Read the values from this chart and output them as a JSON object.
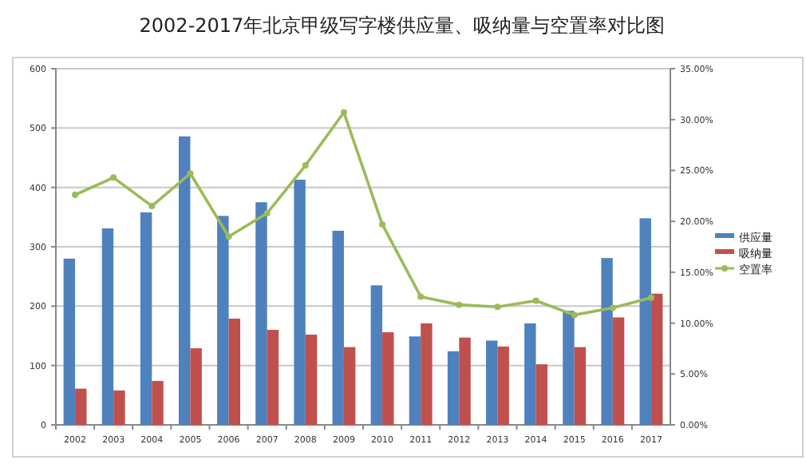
{
  "chart_data": {
    "type": "bar",
    "title": "2002-2017年北京甲级写字楼供应量、吸纳量与空置率对比图",
    "categories": [
      "2002",
      "2003",
      "2004",
      "2005",
      "2006",
      "2007",
      "2008",
      "2009",
      "2010",
      "2011",
      "2012",
      "2013",
      "2014",
      "2015",
      "2016",
      "2017"
    ],
    "series": [
      {
        "name": "供应量",
        "color": "#4f81bd",
        "values": [
          280,
          331,
          358,
          486,
          352,
          375,
          413,
          327,
          235,
          149,
          124,
          142,
          171,
          192,
          281,
          348
        ]
      },
      {
        "name": "吸纳量",
        "color": "#c0504d",
        "values": [
          61,
          58,
          74,
          129,
          179,
          160,
          152,
          131,
          156,
          171,
          147,
          132,
          102,
          131,
          181,
          221
        ]
      },
      {
        "name": "空置率",
        "type": "line",
        "axis": "y2",
        "marker": "circle",
        "color": "#9bbb59",
        "values": [
          22.6,
          24.3,
          21.5,
          24.7,
          18.5,
          20.8,
          25.5,
          30.7,
          19.7,
          12.6,
          11.8,
          11.6,
          12.2,
          10.8,
          11.5,
          12.5
        ]
      }
    ],
    "ylim": [
      0,
      600
    ],
    "yticks": [
      0,
      100,
      200,
      300,
      400,
      500,
      600
    ],
    "y2lim": [
      0,
      35
    ],
    "y2ticks": [
      {
        "value": 0,
        "label": "0.00%"
      },
      {
        "value": 5,
        "label": "5.00%"
      },
      {
        "value": 10,
        "label": "10.00%"
      },
      {
        "value": 15,
        "label": "15.00%"
      },
      {
        "value": 20,
        "label": "20.00%"
      },
      {
        "value": 25,
        "label": "25.00%"
      },
      {
        "value": 30,
        "label": "30.00%"
      },
      {
        "value": 35,
        "label": "35.00%"
      }
    ],
    "grid": "y",
    "legend": "right"
  }
}
